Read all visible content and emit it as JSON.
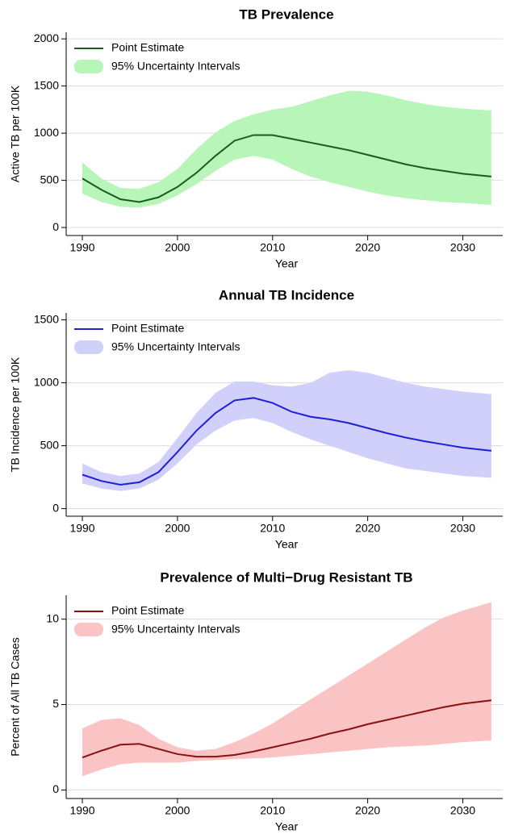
{
  "chart_data": [
    {
      "type": "line",
      "title": "TB Prevalence",
      "x_label": "Year",
      "y_label": "Active TB per 100K",
      "x": [
        1990,
        1992,
        1994,
        1996,
        1998,
        2000,
        2002,
        2004,
        2006,
        2008,
        2010,
        2012,
        2014,
        2016,
        2018,
        2020,
        2022,
        2024,
        2026,
        2028,
        2030,
        2033
      ],
      "xlim": [
        1988.3,
        2034.2
      ],
      "xticks": [
        1990,
        2000,
        2010,
        2020,
        2030
      ],
      "ylim": [
        -85,
        2070
      ],
      "yticks": [
        0,
        500,
        1000,
        1500,
        2000
      ],
      "grid": true,
      "legend": "top-left",
      "series": [
        {
          "name": "Point Estimate",
          "color": "#1a5c1a",
          "values": [
            520,
            400,
            300,
            270,
            320,
            430,
            580,
            760,
            920,
            980,
            980,
            940,
            900,
            860,
            820,
            770,
            720,
            670,
            630,
            600,
            570,
            540
          ]
        }
      ],
      "band": {
        "name": "95% Uncertainty Intervals",
        "color": "#b8f5b8",
        "lower": [
          360,
          270,
          220,
          210,
          250,
          340,
          460,
          600,
          720,
          760,
          720,
          620,
          540,
          480,
          430,
          380,
          340,
          310,
          290,
          270,
          260,
          240
        ],
        "upper": [
          690,
          520,
          420,
          410,
          480,
          620,
          830,
          1010,
          1130,
          1200,
          1250,
          1280,
          1340,
          1400,
          1450,
          1440,
          1400,
          1350,
          1310,
          1280,
          1260,
          1240
        ]
      }
    },
    {
      "type": "line",
      "title": "Annual TB Incidence",
      "x_label": "Year",
      "y_label": "TB Incidence per 100K",
      "x": [
        1990,
        1992,
        1994,
        1996,
        1998,
        2000,
        2002,
        2004,
        2006,
        2008,
        2010,
        2012,
        2014,
        2016,
        2018,
        2020,
        2022,
        2024,
        2026,
        2028,
        2030,
        2033
      ],
      "xlim": [
        1988.3,
        2034.2
      ],
      "xticks": [
        1990,
        2000,
        2010,
        2020,
        2030
      ],
      "ylim": [
        -60,
        1555
      ],
      "yticks": [
        0,
        500,
        1000,
        1500
      ],
      "grid": true,
      "legend": "top-left",
      "series": [
        {
          "name": "Point Estimate",
          "color": "#1f1fd6",
          "values": [
            270,
            220,
            190,
            210,
            290,
            450,
            620,
            760,
            860,
            880,
            840,
            770,
            730,
            710,
            680,
            640,
            600,
            565,
            535,
            510,
            485,
            460
          ]
        }
      ],
      "band": {
        "name": "95% Uncertainty Intervals",
        "color": "#d0d0fa",
        "lower": [
          200,
          160,
          140,
          160,
          230,
          360,
          510,
          620,
          700,
          720,
          680,
          610,
          550,
          500,
          450,
          400,
          360,
          320,
          300,
          280,
          260,
          245
        ],
        "upper": [
          360,
          290,
          260,
          280,
          370,
          560,
          760,
          920,
          1010,
          1010,
          980,
          970,
          1000,
          1080,
          1100,
          1080,
          1040,
          1000,
          970,
          950,
          930,
          910
        ]
      }
    },
    {
      "type": "line",
      "title": "Prevalence of Multi−Drug Resistant TB",
      "x_label": "Year",
      "y_label": "Percent of All TB Cases",
      "x": [
        1990,
        1992,
        1994,
        1996,
        1998,
        2000,
        2002,
        2004,
        2006,
        2008,
        2010,
        2012,
        2014,
        2016,
        2018,
        2020,
        2022,
        2024,
        2026,
        2028,
        2030,
        2033
      ],
      "xlim": [
        1988.3,
        2034.2
      ],
      "xticks": [
        1990,
        2000,
        2010,
        2020,
        2030
      ],
      "ylim": [
        -0.5,
        11.4
      ],
      "yticks": [
        0,
        5,
        10
      ],
      "grid": true,
      "legend": "top-left",
      "series": [
        {
          "name": "Point Estimate",
          "color": "#8b1010",
          "values": [
            1.9,
            2.3,
            2.65,
            2.7,
            2.4,
            2.1,
            1.95,
            1.95,
            2.05,
            2.25,
            2.5,
            2.75,
            3.0,
            3.3,
            3.55,
            3.85,
            4.1,
            4.35,
            4.6,
            4.85,
            5.05,
            5.25
          ]
        }
      ],
      "band": {
        "name": "95% Uncertainty Intervals",
        "color": "#fbc4c4",
        "lower": [
          0.8,
          1.2,
          1.5,
          1.6,
          1.6,
          1.6,
          1.7,
          1.75,
          1.8,
          1.85,
          1.9,
          2.0,
          2.1,
          2.2,
          2.3,
          2.4,
          2.5,
          2.55,
          2.6,
          2.7,
          2.8,
          2.9
        ],
        "upper": [
          3.6,
          4.1,
          4.2,
          3.8,
          3.0,
          2.5,
          2.3,
          2.4,
          2.8,
          3.3,
          3.9,
          4.6,
          5.3,
          6.0,
          6.7,
          7.4,
          8.1,
          8.8,
          9.5,
          10.1,
          10.5,
          11.0
        ]
      }
    }
  ]
}
